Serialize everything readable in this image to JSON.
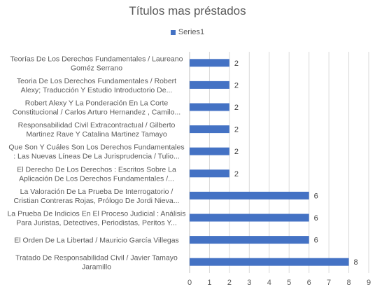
{
  "chart_data": {
    "type": "bar",
    "orientation": "horizontal",
    "title": "Títulos mas préstados",
    "legend": {
      "position": "top",
      "entries": [
        "Series1"
      ]
    },
    "series": [
      {
        "name": "Series1",
        "color": "#4472C4",
        "values": [
          2,
          2,
          2,
          2,
          2,
          2,
          6,
          6,
          6,
          8
        ]
      }
    ],
    "categories": [
      [
        "Teorías De Los Derechos Fundamentales / Laureano",
        "Goméz Serrano"
      ],
      [
        "Teoria De Los Derechos Fundamentales / Robert",
        "Alexy; Traducción Y Estudio Introductorio De..."
      ],
      [
        "Robert Alexy Y La Ponderación En La Corte",
        "Constitucional / Carlos Arturo Hernandez , Camilo..."
      ],
      [
        "Responsabilidad Civil Extracontractual / Gilberto",
        "Martinez Rave Y Catalina Martinez Tamayo"
      ],
      [
        "Que Son Y Cuáles Son Los Derechos Fundamentales",
        ": Las Nuevas Líneas De La Jurisprudencia / Tulio..."
      ],
      [
        "El Derecho De Los Derechos : Escritos Sobre La",
        "Aplicación De Los Derechos Fundamentales /..."
      ],
      [
        "La Valoración De La Prueba De Interrogatorio /",
        "Cristian Contreras Rojas, Prólogo De Jordi Nieva..."
      ],
      [
        "La Prueba De Indicios En El Proceso Judicial : Análisis",
        "Para Juristas, Detectives, Periodistas, Peritos Y..."
      ],
      [
        "El Orden De La Libertad / Mauricio García Villegas"
      ],
      [
        "Tratado De Responsabilidad Civil / Javier Tamayo",
        "Jaramillo"
      ]
    ],
    "xlim": [
      0,
      9
    ],
    "xticks": [
      "0",
      "1",
      "2",
      "3",
      "4",
      "5",
      "6",
      "7",
      "8",
      "9"
    ],
    "grid": {
      "vertical": true
    }
  }
}
